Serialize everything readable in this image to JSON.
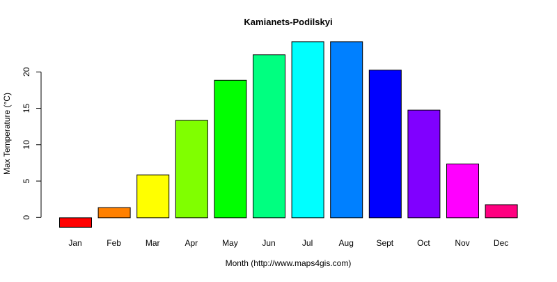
{
  "chart_data": {
    "type": "bar",
    "title": "Kamianets-Podilskyi",
    "xlabel": "Month (http://www.maps4gis.com)",
    "ylabel": "Max Temperature (°C)",
    "categories": [
      "Jan",
      "Feb",
      "Mar",
      "Apr",
      "May",
      "Jun",
      "Jul",
      "Aug",
      "Sept",
      "Oct",
      "Nov",
      "Dec"
    ],
    "values": [
      -1.3,
      1.4,
      5.9,
      13.4,
      18.9,
      22.4,
      24.2,
      24.2,
      20.3,
      14.8,
      7.4,
      1.8
    ],
    "colors": [
      "#FF0000",
      "#FF8000",
      "#FFFF00",
      "#80FF00",
      "#00FF00",
      "#00FF80",
      "#00FFFF",
      "#0080FF",
      "#0000FF",
      "#8000FF",
      "#FF00FF",
      "#FF0080"
    ],
    "yticks": [
      0,
      5,
      10,
      15,
      20
    ],
    "ylim": [
      -1.3,
      24.2
    ],
    "grid": false,
    "legend": "none"
  }
}
